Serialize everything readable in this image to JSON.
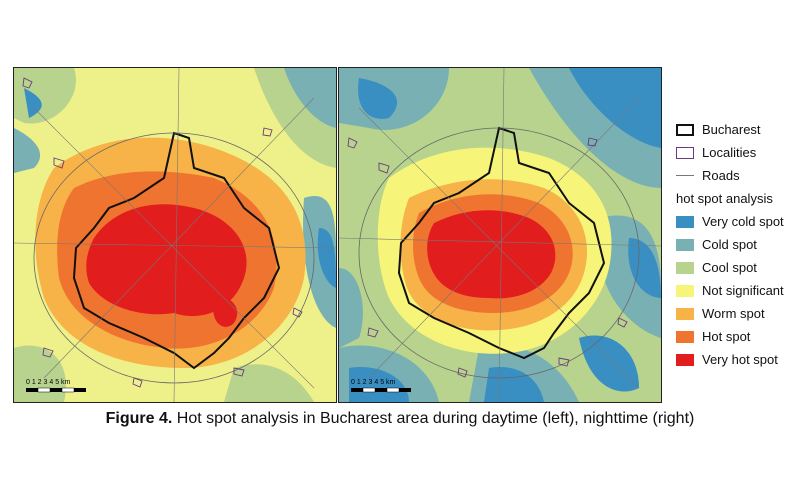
{
  "legend": {
    "boundary_items": [
      {
        "label": "Bucharest",
        "style": "thick-outline"
      },
      {
        "label": "Localities",
        "style": "purple-outline"
      },
      {
        "label": "Roads",
        "style": "line"
      }
    ],
    "heading": "hot spot analysis",
    "classes": [
      {
        "label": "Very cold spot",
        "color": "#3a8fc2"
      },
      {
        "label": "Cold spot",
        "color": "#79b0b4"
      },
      {
        "label": "Cool spot",
        "color": "#b7d38e"
      },
      {
        "label": "Not significant",
        "color": "#f6f57a"
      },
      {
        "label": "Worm spot",
        "color": "#f7b347"
      },
      {
        "label": "Hot spot",
        "color": "#ef7430"
      },
      {
        "label": "Very hot spot",
        "color": "#e21d1d"
      }
    ]
  },
  "maps": [
    {
      "period": "daytime",
      "scale_labels": "0 1 2 3 4 5 km"
    },
    {
      "period": "nighttime",
      "scale_labels": "0 1 2 3 4 5 km"
    }
  ],
  "caption": {
    "prefix": "Figure 4.",
    "text": " Hot spot analysis in Bucharest area during daytime (left), nighttime (right)"
  }
}
